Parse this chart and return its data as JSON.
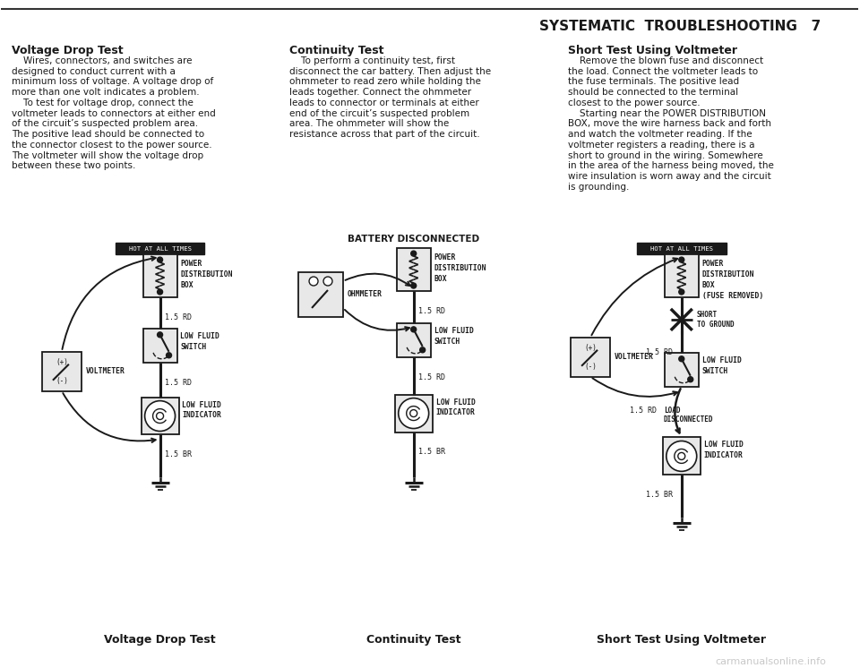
{
  "title": "SYSTEMATIC  TROUBLESHOOTING   7",
  "bg_color": "#ffffff",
  "text_color": "#1a1a1a",
  "section1_title": "Voltage Drop Test",
  "section1_body": [
    "    Wires, connectors, and switches are",
    "designed to conduct current with a",
    "minimum loss of voltage. A voltage drop of",
    "more than one volt indicates a problem.",
    "    To test for voltage drop, connect the",
    "voltmeter leads to connectors at either end",
    "of the circuit’s suspected problem area.",
    "The positive lead should be connected to",
    "the connector closest to the power source.",
    "The voltmeter will show the voltage drop",
    "between these two points."
  ],
  "section2_title": "Continuity Test",
  "section2_body": [
    "    To perform a continuity test, first",
    "disconnect the car battery. Then adjust the",
    "ohmmeter to read zero while holding the",
    "leads together. Connect the ohmmeter",
    "leads to connector or terminals at either",
    "end of the circuit’s suspected problem",
    "area. The ohmmeter will show the",
    "resistance across that part of the circuit."
  ],
  "section3_title": "Short Test Using Voltmeter",
  "section3_body": [
    "    Remove the blown fuse and disconnect",
    "the load. Connect the voltmeter leads to",
    "the fuse terminals. The positive lead",
    "should be connected to the terminal",
    "closest to the power source.",
    "    Starting near the POWER DISTRIBUTION",
    "BOX, move the wire harness back and forth",
    "and watch the voltmeter reading. If the",
    "voltmeter registers a reading, there is a",
    "short to ground in the wiring. Somewhere",
    "in the area of the harness being moved, the",
    "wire insulation is worn away and the circuit",
    "is grounding."
  ],
  "label1": "Voltage Drop Test",
  "label2": "Continuity Test",
  "label3": "Short Test Using Voltmeter",
  "watermark": "carmanualsonline.info"
}
